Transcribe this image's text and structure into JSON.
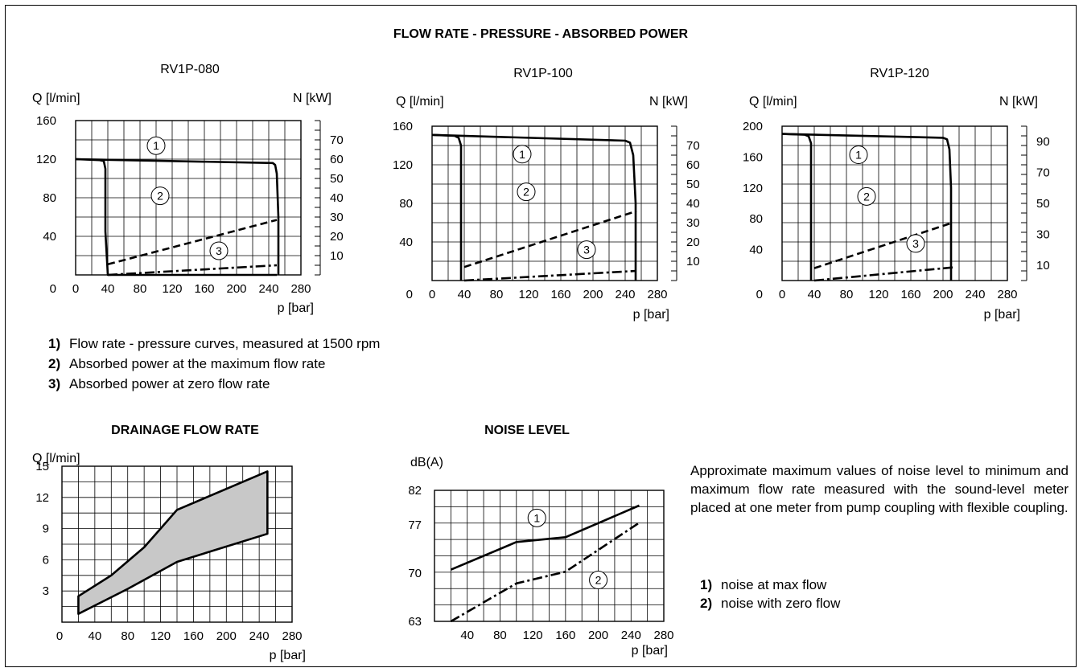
{
  "title": "FLOW RATE - PRESSURE - ABSORBED POWER",
  "legend_top": [
    {
      "num": "1)",
      "text": "Flow rate - pressure curves, measured at 1500 rpm"
    },
    {
      "num": "2)",
      "text": "Absorbed power at the maximum flow rate"
    },
    {
      "num": "3)",
      "text": "Absorbed power at zero flow rate"
    }
  ],
  "noise_description": "Approximate maximum values of noise level to minimum and maximum flow rate measured with the sound-level meter placed at one meter from pump coupling with flexible coupling.",
  "legend_noise": [
    {
      "num": "1)",
      "text": "noise at max flow"
    },
    {
      "num": "2)",
      "text": "noise with zero flow"
    }
  ],
  "chart_data": [
    {
      "type": "line",
      "title": "RV1P-080",
      "ylabel": "Q  [l/min]",
      "y2label": "N [kW]",
      "xlabel": "p [bar]",
      "xlim": [
        0,
        280
      ],
      "ylim": [
        0,
        160
      ],
      "y2lim": [
        0,
        80
      ],
      "x_ticks": [
        "0",
        "40",
        "80",
        "120",
        "160",
        "200",
        "240",
        "280"
      ],
      "y_ticks": [
        "0",
        "40",
        "80",
        "120",
        "160"
      ],
      "y2_ticks": [
        "10",
        "20",
        "30",
        "40",
        "50",
        "60",
        "70"
      ],
      "series": [
        {
          "name": "1",
          "style": "solid",
          "x": [
            0,
            30,
            35,
            37,
            37,
            37,
            40,
            240,
            244,
            246,
            246,
            246,
            248,
            250
          ],
          "y": [
            120,
            119,
            118,
            110,
            80,
            45,
            0,
            0,
            0,
            0,
            0,
            0,
            0,
            0
          ],
          "x2": [
            0,
            245,
            248,
            250,
            252,
            252,
            252
          ],
          "y2": [
            120,
            116,
            114,
            105,
            60,
            20,
            0
          ]
        },
        {
          "name": "2",
          "style": "dashed",
          "x": [
            40,
            250
          ],
          "y": [
            11,
            57
          ]
        },
        {
          "name": "3",
          "style": "dashdot",
          "x": [
            40,
            250
          ],
          "y": [
            0,
            10
          ]
        }
      ],
      "markers": [
        {
          "label": "1",
          "x": 100,
          "y": 134
        },
        {
          "label": "2",
          "x": 105,
          "y": 82
        },
        {
          "label": "3",
          "x": 178,
          "y": 25
        }
      ]
    },
    {
      "type": "line",
      "title": "RV1P-100",
      "ylabel": "Q  [l/min]",
      "y2label": "N [kW]",
      "xlabel": "p [bar]",
      "xlim": [
        0,
        280
      ],
      "ylim": [
        0,
        160
      ],
      "y2lim": [
        0,
        80
      ],
      "x_ticks": [
        "0",
        "40",
        "80",
        "120",
        "160",
        "200",
        "240",
        "280"
      ],
      "y_ticks": [
        "0",
        "40",
        "80",
        "120",
        "160"
      ],
      "y2_ticks": [
        "10",
        "20",
        "30",
        "40",
        "50",
        "60",
        "70"
      ],
      "series": [
        {
          "name": "1",
          "style": "solid",
          "x": [
            0,
            28,
            33,
            36,
            36
          ],
          "y": [
            151,
            150,
            148,
            140,
            0
          ]
        },
        {
          "name": "1",
          "style": "solid",
          "x": [
            0,
            240,
            246,
            250,
            253,
            253
          ],
          "y": [
            151,
            145,
            143,
            130,
            80,
            0
          ]
        },
        {
          "name": "2",
          "style": "dashed",
          "x": [
            40,
            254
          ],
          "y": [
            14,
            72
          ]
        },
        {
          "name": "3",
          "style": "dashdot",
          "x": [
            40,
            254
          ],
          "y": [
            0,
            10
          ]
        }
      ],
      "markers": [
        {
          "label": "1",
          "x": 112,
          "y": 131
        },
        {
          "label": "2",
          "x": 117,
          "y": 92
        },
        {
          "label": "3",
          "x": 192,
          "y": 32
        }
      ]
    },
    {
      "type": "line",
      "title": "RV1P-120",
      "ylabel": "Q  [l/min]",
      "y2label": "N [kW]",
      "xlabel": "p [bar]",
      "xlim": [
        0,
        280
      ],
      "ylim": [
        0,
        200
      ],
      "y2lim": [
        0,
        100
      ],
      "x_ticks": [
        "0",
        "40",
        "80",
        "120",
        "160",
        "200",
        "240",
        "280"
      ],
      "y_ticks": [
        "0",
        "40",
        "80",
        "120",
        "160",
        "200"
      ],
      "y2_ticks": [
        "10",
        "30",
        "50",
        "70",
        "90"
      ],
      "series": [
        {
          "name": "1",
          "style": "solid",
          "x": [
            0,
            28,
            33,
            36,
            36
          ],
          "y": [
            190,
            189,
            187,
            178,
            0
          ]
        },
        {
          "name": "1",
          "style": "solid",
          "x": [
            0,
            200,
            205,
            208,
            210,
            210
          ],
          "y": [
            190,
            185,
            183,
            170,
            120,
            0
          ]
        },
        {
          "name": "2",
          "style": "dashed",
          "x": [
            40,
            212
          ],
          "y": [
            16,
            75
          ]
        },
        {
          "name": "3",
          "style": "dashdot",
          "x": [
            40,
            212
          ],
          "y": [
            0,
            17
          ]
        }
      ],
      "markers": [
        {
          "label": "1",
          "x": 95,
          "y": 163
        },
        {
          "label": "2",
          "x": 105,
          "y": 109
        },
        {
          "label": "3",
          "x": 166,
          "y": 48
        }
      ]
    },
    {
      "type": "area",
      "title": "DRAINAGE FLOW RATE",
      "ylabel": "Q [l/min]",
      "xlabel": "p [bar]",
      "xlim": [
        0,
        280
      ],
      "ylim": [
        0,
        15
      ],
      "x_ticks": [
        "0",
        "40",
        "80",
        "120",
        "160",
        "200",
        "240",
        "280"
      ],
      "y_ticks": [
        "3",
        "6",
        "9",
        "12",
        "15"
      ],
      "upper": {
        "x": [
          20,
          60,
          100,
          120,
          140,
          250
        ],
        "y": [
          2.5,
          4.5,
          7.2,
          9,
          10.8,
          14.5
        ]
      },
      "lower": {
        "x": [
          20,
          80,
          140,
          250
        ],
        "y": [
          0.8,
          3.2,
          5.8,
          8.5
        ]
      }
    },
    {
      "type": "line",
      "title": "NOISE LEVEL",
      "ylabel": "dB(A)",
      "xlabel": "p [bar]",
      "xlim": [
        0,
        280
      ],
      "ylim": [
        63,
        82
      ],
      "x_ticks": [
        "40",
        "80",
        "120",
        "160",
        "200",
        "240",
        "280"
      ],
      "y_ticks": [
        "63",
        "70",
        "77",
        "82"
      ],
      "series": [
        {
          "name": "1",
          "style": "solid",
          "x": [
            20,
            100,
            160,
            250
          ],
          "y": [
            70.5,
            74.5,
            75.2,
            79.8
          ]
        },
        {
          "name": "2",
          "style": "dashdot",
          "x": [
            20,
            100,
            160,
            250
          ],
          "y": [
            63,
            68.5,
            70.2,
            77.3
          ]
        }
      ],
      "markers": [
        {
          "label": "1",
          "x": 125,
          "y": 78
        },
        {
          "label": "2",
          "x": 200,
          "y": 69
        }
      ]
    }
  ]
}
